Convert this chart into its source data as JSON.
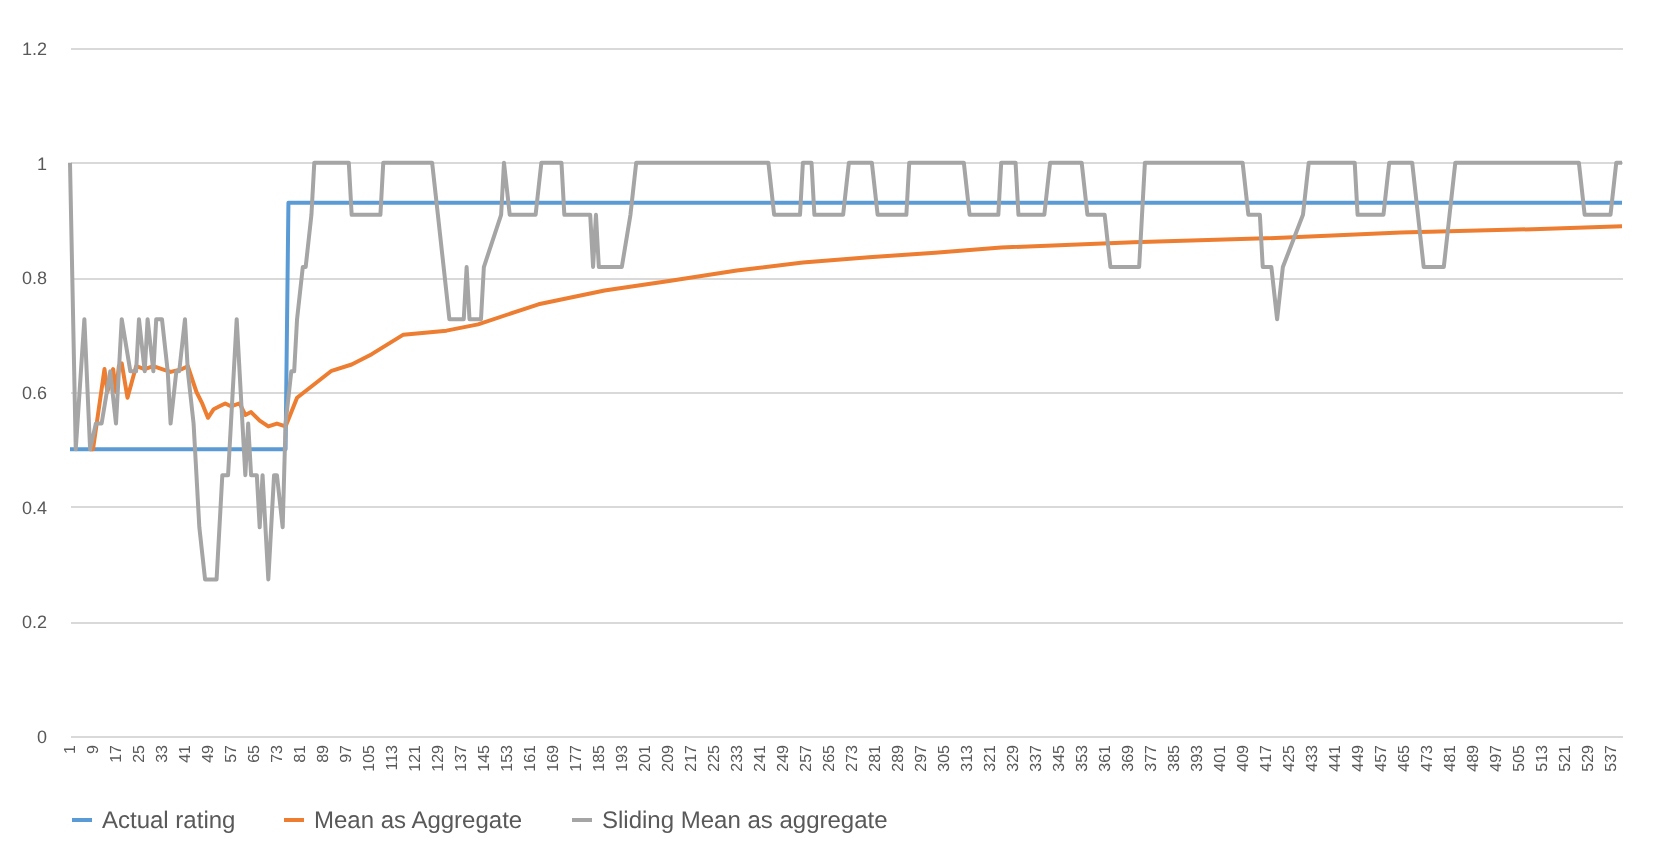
{
  "chart_data": {
    "type": "line",
    "xlim": [
      1,
      541
    ],
    "ylim": [
      0,
      1.2
    ],
    "xticks": [
      1,
      9,
      17,
      25,
      33,
      41,
      49,
      57,
      65,
      73,
      81,
      89,
      97,
      105,
      113,
      121,
      129,
      137,
      145,
      153,
      161,
      169,
      177,
      185,
      193,
      201,
      209,
      217,
      225,
      233,
      241,
      249,
      257,
      265,
      273,
      281,
      289,
      297,
      305,
      313,
      321,
      329,
      337,
      345,
      353,
      361,
      369,
      377,
      385,
      393,
      401,
      409,
      417,
      425,
      433,
      441,
      449,
      457,
      465,
      473,
      481,
      489,
      497,
      505,
      513,
      521,
      529,
      537
    ],
    "yticks": [
      0,
      0.2,
      0.4,
      0.6,
      0.8,
      1,
      1.2
    ],
    "grid": "y",
    "legend": "bottom",
    "series": [
      {
        "name": "Actual rating",
        "color": "#5b9bd5",
        "x": [
          1,
          76,
          77,
          541
        ],
        "values": [
          0.5,
          0.5,
          0.93,
          0.93
        ]
      },
      {
        "name": "Mean as Aggregate",
        "color": "#ed7d31",
        "x": [
          8,
          9,
          11,
          13,
          14,
          16,
          17,
          18,
          19,
          21,
          24,
          27,
          30,
          33,
          36,
          40,
          42,
          45,
          47,
          49,
          51,
          53,
          55,
          57,
          60,
          62,
          64,
          67,
          70,
          73,
          76,
          80,
          92,
          99,
          106,
          117,
          132,
          143,
          164,
          187,
          210,
          233,
          256,
          279,
          302,
          325,
          371,
          417,
          464,
          510,
          541
        ],
        "values": [
          0.5,
          0.5,
          0.57,
          0.64,
          0.6,
          0.64,
          0.6,
          0.645,
          0.65,
          0.59,
          0.645,
          0.64,
          0.645,
          0.64,
          0.635,
          0.64,
          0.645,
          0.6,
          0.58,
          0.555,
          0.57,
          0.575,
          0.58,
          0.575,
          0.58,
          0.56,
          0.565,
          0.55,
          0.54,
          0.545,
          0.54,
          0.59,
          0.637,
          0.648,
          0.666,
          0.7,
          0.707,
          0.718,
          0.753,
          0.777,
          0.794,
          0.812,
          0.826,
          0.835,
          0.843,
          0.852,
          0.861,
          0.868,
          0.878,
          0.884,
          0.889
        ]
      },
      {
        "name": "Sliding Mean as aggregate",
        "color": "#a5a5a5",
        "x": [
          1,
          3,
          6,
          8,
          10,
          12,
          15,
          17,
          19,
          22,
          24,
          25,
          27,
          28,
          30,
          31,
          33,
          35,
          36,
          38,
          39,
          41,
          42,
          44,
          45,
          46,
          48,
          52,
          54,
          56,
          57,
          59,
          61,
          62,
          63,
          64,
          66,
          67,
          68,
          70,
          72,
          73,
          75,
          76,
          78,
          79,
          80,
          82,
          83,
          85,
          86,
          98,
          99,
          109,
          110,
          127,
          129,
          131,
          133,
          138,
          139,
          140,
          144,
          145,
          151,
          152,
          154,
          163,
          165,
          172,
          173,
          182,
          183,
          184,
          185,
          187,
          193,
          196,
          198,
          244,
          246,
          255,
          256,
          259,
          260,
          270,
          272,
          280,
          282,
          292,
          293,
          312,
          314,
          324,
          325,
          330,
          331,
          340,
          342,
          353,
          355,
          361,
          363,
          373,
          375,
          409,
          411,
          415,
          416,
          419,
          421,
          423,
          430,
          432,
          448,
          449,
          458,
          460,
          468,
          470,
          472,
          479,
          481,
          483,
          526,
          528,
          537,
          539,
          541
        ],
        "values": [
          1,
          0.5,
          0.727,
          0.5,
          0.545,
          0.545,
          0.636,
          0.545,
          0.727,
          0.636,
          0.636,
          0.727,
          0.636,
          0.727,
          0.636,
          0.727,
          0.727,
          0.636,
          0.545,
          0.636,
          0.636,
          0.727,
          0.636,
          0.545,
          0.455,
          0.364,
          0.273,
          0.273,
          0.455,
          0.455,
          0.545,
          0.727,
          0.545,
          0.455,
          0.545,
          0.455,
          0.455,
          0.364,
          0.455,
          0.273,
          0.455,
          0.455,
          0.364,
          0.545,
          0.636,
          0.636,
          0.727,
          0.818,
          0.818,
          0.909,
          1,
          1,
          0.909,
          0.909,
          1,
          1,
          0.909,
          0.818,
          0.727,
          0.727,
          0.818,
          0.727,
          0.727,
          0.818,
          0.909,
          1,
          0.909,
          0.909,
          1,
          1,
          0.909,
          0.909,
          0.818,
          0.909,
          0.818,
          0.818,
          0.818,
          0.909,
          1,
          1,
          0.909,
          0.909,
          1,
          1,
          0.909,
          0.909,
          1,
          1,
          0.909,
          0.909,
          1,
          1,
          0.909,
          0.909,
          1,
          1,
          0.909,
          0.909,
          1,
          1,
          0.909,
          0.909,
          0.818,
          0.818,
          1,
          1,
          0.909,
          0.909,
          0.818,
          0.818,
          0.727,
          0.818,
          0.909,
          1,
          1,
          0.909,
          0.909,
          1,
          1,
          0.909,
          0.818,
          0.818,
          0.909,
          1,
          1,
          0.909,
          0.909,
          1,
          1
        ]
      }
    ]
  }
}
